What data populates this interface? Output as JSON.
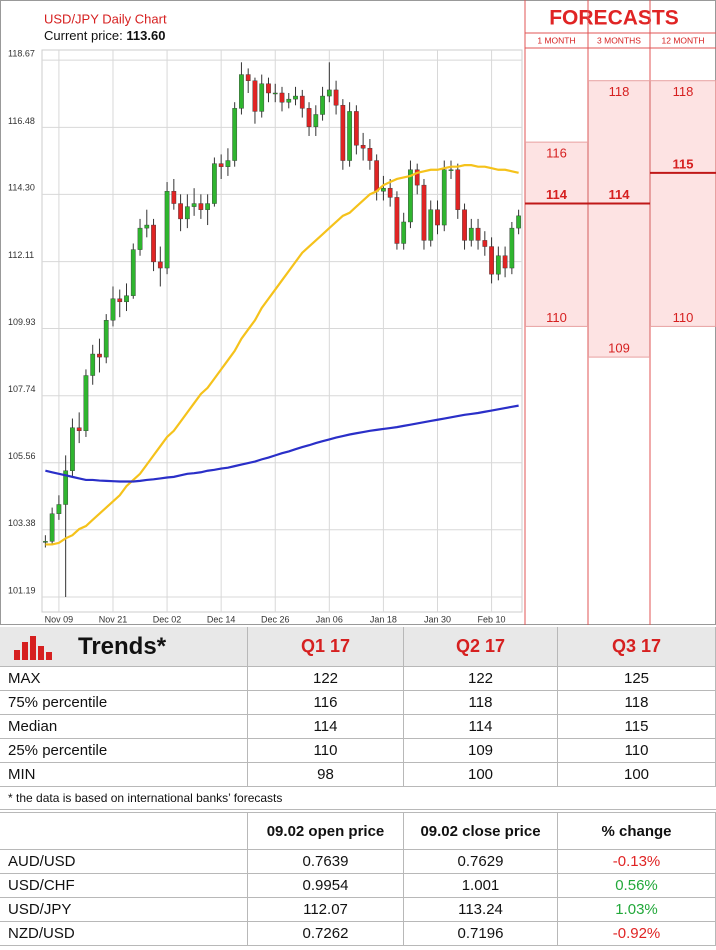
{
  "chart_data": {
    "type": "candlestick",
    "title": "USD/JPY Daily Chart",
    "current_price_label": "Current price:",
    "current_price": "113.60",
    "categories": [
      null,
      null,
      "Nov 09",
      null,
      null,
      null,
      null,
      null,
      null,
      null,
      "Nov 21",
      null,
      null,
      null,
      null,
      null,
      null,
      null,
      "Dec 02",
      null,
      null,
      null,
      null,
      null,
      null,
      null,
      "Dec 14",
      null,
      null,
      null,
      null,
      null,
      null,
      null,
      "Dec 26",
      null,
      null,
      null,
      null,
      null,
      null,
      null,
      "Jan 06",
      null,
      null,
      null,
      null,
      null,
      null,
      null,
      "Jan 18",
      null,
      null,
      null,
      null,
      null,
      null,
      null,
      "Jan 30",
      null,
      null,
      null,
      null,
      null,
      null,
      null,
      "Feb 10",
      null,
      null,
      null,
      null
    ],
    "open": [
      103.0,
      103.0,
      103.9,
      104.2,
      105.3,
      106.7,
      106.6,
      108.4,
      109.1,
      109.0,
      110.2,
      110.9,
      110.8,
      111.0,
      112.5,
      113.2,
      113.3,
      112.1,
      111.9,
      114.4,
      114.0,
      113.5,
      113.9,
      114.0,
      113.8,
      114.0,
      115.3,
      115.2,
      115.4,
      117.1,
      118.2,
      118.0,
      117.0,
      117.9,
      117.6,
      117.6,
      117.3,
      117.4,
      117.5,
      117.1,
      116.5,
      116.9,
      117.5,
      117.7,
      117.2,
      115.4,
      117.0,
      115.9,
      115.8,
      115.4,
      114.4,
      114.5,
      114.2,
      112.7,
      113.4,
      115.1,
      114.6,
      112.8,
      113.8,
      113.3,
      115.1,
      115.1,
      113.8,
      112.8,
      113.2,
      112.8,
      112.6,
      111.7,
      112.3,
      111.9,
      113.2
    ],
    "high": [
      103.2,
      104.1,
      104.5,
      105.8,
      107.0,
      107.2,
      108.6,
      109.4,
      109.6,
      110.4,
      111.3,
      111.2,
      111.4,
      112.7,
      113.5,
      113.8,
      113.5,
      112.6,
      114.7,
      114.8,
      114.3,
      114.3,
      114.5,
      114.3,
      114.3,
      115.5,
      115.6,
      115.8,
      117.3,
      118.6,
      118.4,
      118.1,
      118.2,
      118.1,
      117.9,
      117.8,
      117.6,
      117.8,
      117.7,
      117.3,
      117.2,
      117.8,
      118.6,
      118.0,
      117.4,
      117.3,
      117.2,
      116.3,
      116.1,
      115.6,
      114.9,
      114.8,
      114.4,
      113.7,
      115.4,
      115.3,
      114.8,
      114.1,
      114.1,
      115.4,
      115.4,
      115.3,
      114.0,
      113.5,
      113.5,
      113.1,
      112.9,
      112.6,
      112.6,
      113.4,
      113.8
    ],
    "low": [
      102.8,
      102.9,
      103.7,
      101.19,
      105.1,
      106.2,
      106.4,
      108.1,
      108.5,
      108.8,
      110.0,
      110.3,
      110.5,
      110.9,
      112.3,
      112.9,
      111.8,
      111.3,
      111.7,
      113.8,
      113.1,
      113.2,
      113.6,
      113.5,
      113.3,
      113.9,
      114.8,
      114.9,
      115.2,
      116.9,
      117.6,
      116.6,
      116.8,
      117.3,
      117.3,
      117.0,
      117.1,
      117.2,
      116.8,
      116.2,
      116.2,
      116.7,
      117.3,
      116.9,
      115.1,
      115.2,
      115.6,
      115.4,
      115.1,
      114.1,
      114.1,
      113.9,
      112.5,
      112.5,
      113.2,
      114.3,
      112.5,
      112.6,
      113.0,
      113.1,
      114.8,
      113.5,
      112.5,
      112.6,
      112.5,
      112.3,
      111.4,
      111.5,
      111.6,
      111.7,
      113.0
    ],
    "close": [
      103.0,
      103.9,
      104.2,
      105.3,
      106.7,
      106.6,
      108.4,
      109.1,
      109.0,
      110.2,
      110.9,
      110.8,
      111.0,
      112.5,
      113.2,
      113.3,
      112.1,
      111.9,
      114.4,
      114.0,
      113.5,
      113.9,
      114.0,
      113.8,
      114.0,
      115.3,
      115.2,
      115.4,
      117.1,
      118.2,
      118.0,
      117.0,
      117.9,
      117.6,
      117.6,
      117.3,
      117.4,
      117.5,
      117.1,
      116.5,
      116.9,
      117.5,
      117.7,
      117.2,
      115.4,
      117.0,
      115.9,
      115.8,
      115.4,
      114.4,
      114.5,
      114.2,
      112.7,
      113.4,
      115.1,
      114.6,
      112.8,
      113.8,
      113.3,
      115.1,
      115.1,
      113.8,
      112.8,
      113.2,
      112.8,
      112.6,
      111.7,
      112.3,
      111.9,
      113.2,
      113.6
    ],
    "up_color": "#2fb52f",
    "down_color": "#e02424",
    "lines": [
      {
        "color": "#f5c21b",
        "values": [
          102.9,
          102.9,
          102.95,
          103.1,
          103.2,
          103.4,
          103.5,
          103.7,
          103.9,
          104.1,
          104.3,
          104.5,
          104.8,
          105.0,
          105.2,
          105.5,
          105.8,
          106.1,
          106.4,
          106.6,
          106.9,
          107.2,
          107.5,
          107.8,
          108.0,
          108.3,
          108.6,
          108.9,
          109.2,
          109.6,
          109.9,
          110.2,
          110.6,
          110.9,
          111.2,
          111.5,
          111.8,
          112.1,
          112.4,
          112.6,
          112.8,
          113.0,
          113.2,
          113.4,
          113.6,
          113.7,
          113.9,
          114.1,
          114.3,
          114.4,
          114.6,
          114.7,
          114.8,
          114.85,
          114.9,
          115.0,
          115.05,
          115.1,
          115.1,
          115.15,
          115.2,
          115.2,
          115.25,
          115.25,
          115.2,
          115.2,
          115.15,
          115.1,
          115.1,
          115.05,
          115.0
        ]
      },
      {
        "color": "#2a2fc8",
        "values": [
          105.3,
          105.25,
          105.2,
          105.15,
          105.1,
          105.05,
          105.0,
          105.0,
          104.98,
          104.97,
          104.96,
          104.95,
          104.95,
          104.95,
          104.97,
          105.0,
          105.02,
          105.05,
          105.08,
          105.1,
          105.15,
          105.2,
          105.22,
          105.25,
          105.3,
          105.33,
          105.37,
          105.4,
          105.45,
          105.5,
          105.55,
          105.6,
          105.67,
          105.73,
          105.8,
          105.87,
          105.93,
          106.0,
          106.07,
          106.13,
          106.2,
          106.26,
          106.32,
          106.38,
          106.43,
          106.48,
          106.52,
          106.56,
          106.6,
          106.63,
          106.66,
          106.69,
          106.72,
          106.76,
          106.8,
          106.84,
          106.88,
          106.92,
          106.96,
          107.0,
          107.04,
          107.08,
          107.12,
          107.15,
          107.18,
          107.22,
          107.26,
          107.3,
          107.34,
          107.38,
          107.42
        ]
      }
    ],
    "ylim": [
      100.7,
      120.4
    ],
    "yticks": [
      {
        "value": 118.67,
        "label": "118.67"
      },
      {
        "value": 116.48,
        "label": "116.48"
      },
      {
        "value": 114.3,
        "label": "114.30"
      },
      {
        "value": 112.11,
        "label": "112.11"
      },
      {
        "value": 109.93,
        "label": "109.93"
      },
      {
        "value": 107.74,
        "label": "107.74"
      },
      {
        "value": 105.56,
        "label": "105.56"
      },
      {
        "value": 103.38,
        "label": "103.38"
      },
      {
        "value": 101.19,
        "label": "101.19"
      }
    ],
    "grid": true,
    "forecasts": {
      "title": "FORECASTS",
      "columns": [
        {
          "label": "1 MONTH",
          "high": 116,
          "median": 114,
          "low": 110
        },
        {
          "label": "3 MONTHS",
          "high": 118,
          "median": 114,
          "low": 109
        },
        {
          "label": "12 MONTH",
          "high": 118,
          "median": 115,
          "low": 110
        }
      ]
    }
  },
  "trends": {
    "title": "Trends*",
    "columns": [
      "Q1 17",
      "Q2 17",
      "Q3 17"
    ],
    "rows": [
      {
        "label": "MAX",
        "values": [
          122,
          122,
          125
        ]
      },
      {
        "label": "75% percentile",
        "values": [
          116,
          118,
          118
        ]
      },
      {
        "label": "Median",
        "values": [
          114,
          114,
          115
        ]
      },
      {
        "label": "25% percentile",
        "values": [
          110,
          109,
          110
        ]
      },
      {
        "label": "MIN",
        "values": [
          98,
          100,
          100
        ]
      }
    ],
    "footnote": "* the data is based on international banks’ forecasts"
  },
  "prices": {
    "columns": [
      "09.02 open price",
      "09.02 close price",
      "% change"
    ],
    "rows": [
      {
        "label": "AUD/USD",
        "open": 0.7639,
        "close": 0.7629,
        "change": "-0.13%"
      },
      {
        "label": "USD/CHF",
        "open": 0.9954,
        "close": 1.001,
        "change": "0.56%"
      },
      {
        "label": "USD/JPY",
        "open": 112.07,
        "close": 113.24,
        "change": "1.03%"
      },
      {
        "label": "NZD/USD",
        "open": 0.7262,
        "close": 0.7196,
        "change": "-0.92%"
      }
    ]
  }
}
